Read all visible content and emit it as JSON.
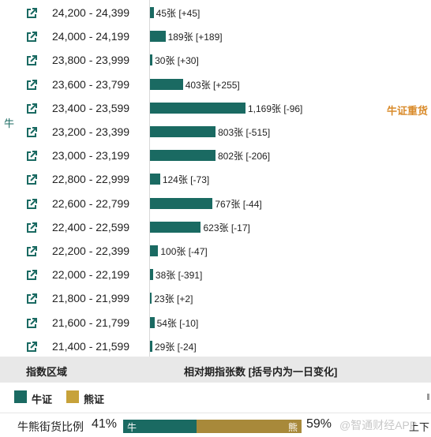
{
  "side_label": "牛",
  "side_tag": "牛证重货",
  "colors": {
    "bull": "#1a6a62",
    "bear": "#a8893a",
    "tag": "#d98b2b"
  },
  "chart_data": {
    "type": "bar",
    "orientation": "horizontal",
    "xlabel": "相对期指张数 [括号内为一日变化]",
    "ylabel": "指数区域",
    "categories": [
      "24,200 - 24,399",
      "24,000 - 24,199",
      "23,800 - 23,999",
      "23,600 - 23,799",
      "23,400 - 23,599",
      "23,200 - 23,399",
      "23,000 - 23,199",
      "22,800 - 22,999",
      "22,600 - 22,799",
      "22,400 - 22,599",
      "22,200 - 22,399",
      "22,000 - 22,199",
      "21,800 - 21,999",
      "21,600 - 21,799",
      "21,400 - 21,599"
    ],
    "values": [
      45,
      189,
      30,
      403,
      1169,
      803,
      802,
      124,
      767,
      623,
      100,
      38,
      23,
      54,
      29
    ],
    "labels": [
      "45张 [+45]",
      "189张 [+189]",
      "30张 [+30]",
      "403张 [+255]",
      "1,169张 [-96]",
      "803张 [-515]",
      "802张 [-206]",
      "124张 [-73]",
      "767张 [-44]",
      "623张 [-17]",
      "100张 [-47]",
      "38张 [-391]",
      "23张 [+2]",
      "54张 [-10]",
      "29张 [-24]"
    ]
  },
  "header": {
    "col_range": "指数区域",
    "col_count": "相对期指张数 [括号内为一日变化]"
  },
  "legend": {
    "bull": "牛证",
    "bear": "熊证"
  },
  "ratio": {
    "title": "牛熊街货比例",
    "bull_pct": "41%",
    "bear_pct": "59%",
    "bull_label": "牛",
    "bear_label": "熊",
    "bull_fraction": 0.41
  },
  "watermark": "@智通财经APP",
  "corner_text": "上下"
}
